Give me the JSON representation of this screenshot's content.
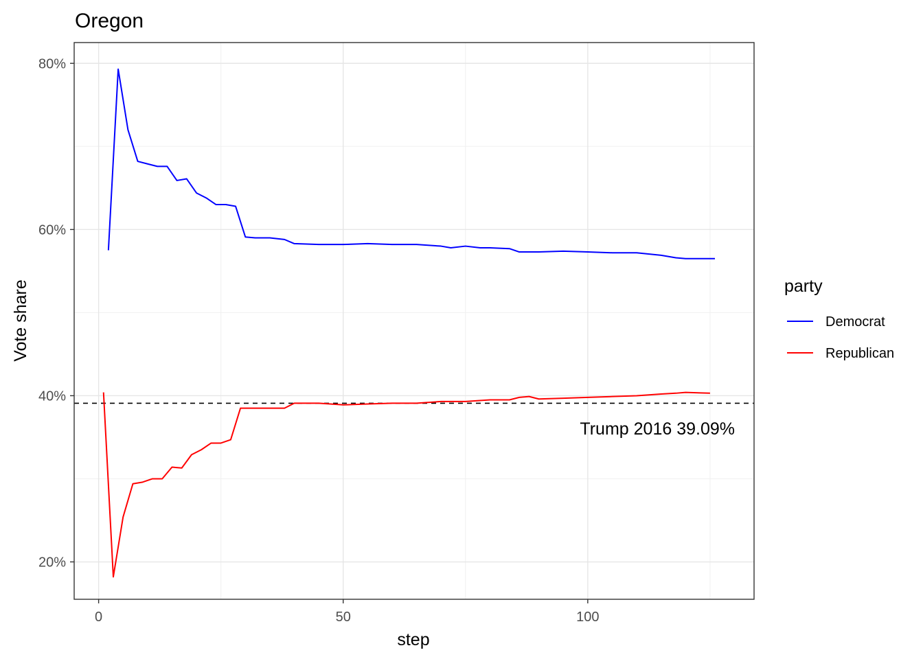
{
  "chart_data": {
    "type": "line",
    "title": "Oregon",
    "xlabel": "step",
    "ylabel": "Vote share",
    "xlim": [
      -5,
      134
    ],
    "ylim": [
      15.5,
      82.5
    ],
    "x_ticks": [
      0,
      50,
      100
    ],
    "y_ticks": [
      20,
      40,
      60,
      80
    ],
    "y_tick_labels": [
      "20%",
      "40%",
      "60%",
      "80%"
    ],
    "y_minor_ticks": [
      30,
      50,
      70
    ],
    "x_minor_ticks": [
      25,
      75,
      125
    ],
    "grid": true,
    "legend": {
      "title": "party",
      "position": "right"
    },
    "series": [
      {
        "name": "Democrat",
        "color": "#0000ff",
        "x": [
          2,
          4,
          6,
          8,
          10,
          12,
          14,
          16,
          18,
          20,
          22,
          24,
          26,
          28,
          30,
          32,
          35,
          38,
          40,
          45,
          50,
          55,
          60,
          65,
          70,
          72,
          75,
          78,
          80,
          84,
          86,
          90,
          95,
          100,
          105,
          110,
          115,
          118,
          120,
          126
        ],
        "y": [
          57.5,
          79.3,
          72.0,
          68.2,
          67.9,
          67.6,
          67.6,
          65.9,
          66.1,
          64.4,
          63.8,
          63.0,
          63.0,
          62.8,
          59.1,
          59.0,
          59.0,
          58.8,
          58.3,
          58.2,
          58.2,
          58.3,
          58.2,
          58.2,
          58.0,
          57.8,
          58.0,
          57.8,
          57.8,
          57.7,
          57.3,
          57.3,
          57.4,
          57.3,
          57.2,
          57.2,
          56.9,
          56.6,
          56.5,
          56.5
        ]
      },
      {
        "name": "Republican",
        "color": "#ff0000",
        "x": [
          1,
          3,
          5,
          7,
          9,
          11,
          13,
          15,
          17,
          19,
          21,
          23,
          25,
          27,
          29,
          31,
          35,
          38,
          40,
          45,
          50,
          55,
          60,
          65,
          70,
          75,
          80,
          84,
          86,
          88,
          90,
          95,
          100,
          105,
          110,
          115,
          118,
          120,
          125
        ],
        "y": [
          40.4,
          18.2,
          25.4,
          29.4,
          29.6,
          30.0,
          30.0,
          31.4,
          31.3,
          32.9,
          33.5,
          34.3,
          34.3,
          34.7,
          38.5,
          38.5,
          38.5,
          38.5,
          39.1,
          39.1,
          38.9,
          39.0,
          39.1,
          39.1,
          39.3,
          39.3,
          39.5,
          39.5,
          39.8,
          39.9,
          39.6,
          39.7,
          39.8,
          39.9,
          40.0,
          40.2,
          40.3,
          40.4,
          40.3
        ]
      }
    ],
    "reference_line": {
      "y": 39.09,
      "style": "dashed",
      "label": "Trump 2016 39.09%"
    }
  }
}
